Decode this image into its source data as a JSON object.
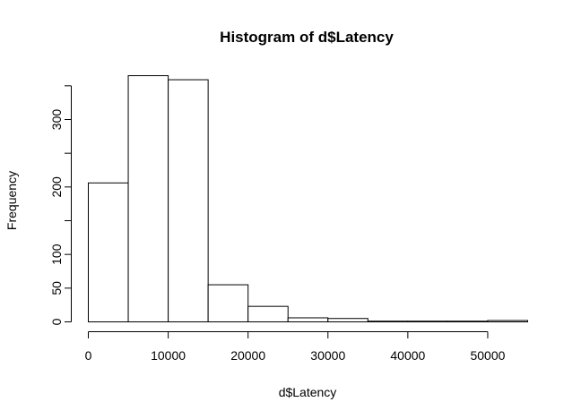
{
  "chart_data": {
    "type": "bar",
    "title": "Histogram of d$Latency",
    "xlabel": "d$Latency",
    "ylabel": "Frequency",
    "bin_edges": [
      0,
      5000,
      10000,
      15000,
      20000,
      25000,
      30000,
      35000,
      40000,
      45000,
      50000,
      55000
    ],
    "values": [
      206,
      365,
      359,
      55,
      23,
      6,
      5,
      1,
      1,
      1,
      2
    ],
    "xlim": [
      0,
      55000
    ],
    "ylim": [
      0,
      365
    ],
    "x_ticks": [
      0,
      10000,
      20000,
      30000,
      40000,
      50000
    ],
    "x_tick_labels": [
      "0",
      "10000",
      "20000",
      "30000",
      "40000",
      "50000"
    ],
    "y_ticks": [
      0,
      50,
      100,
      150,
      200,
      250,
      300,
      350
    ],
    "y_tick_labels": [
      "0",
      "50",
      "100",
      "",
      "200",
      "",
      "300",
      ""
    ],
    "grid": false,
    "legend": "none",
    "colors": {
      "bar_fill": "#ffffff",
      "bar_stroke": "#000000"
    }
  }
}
